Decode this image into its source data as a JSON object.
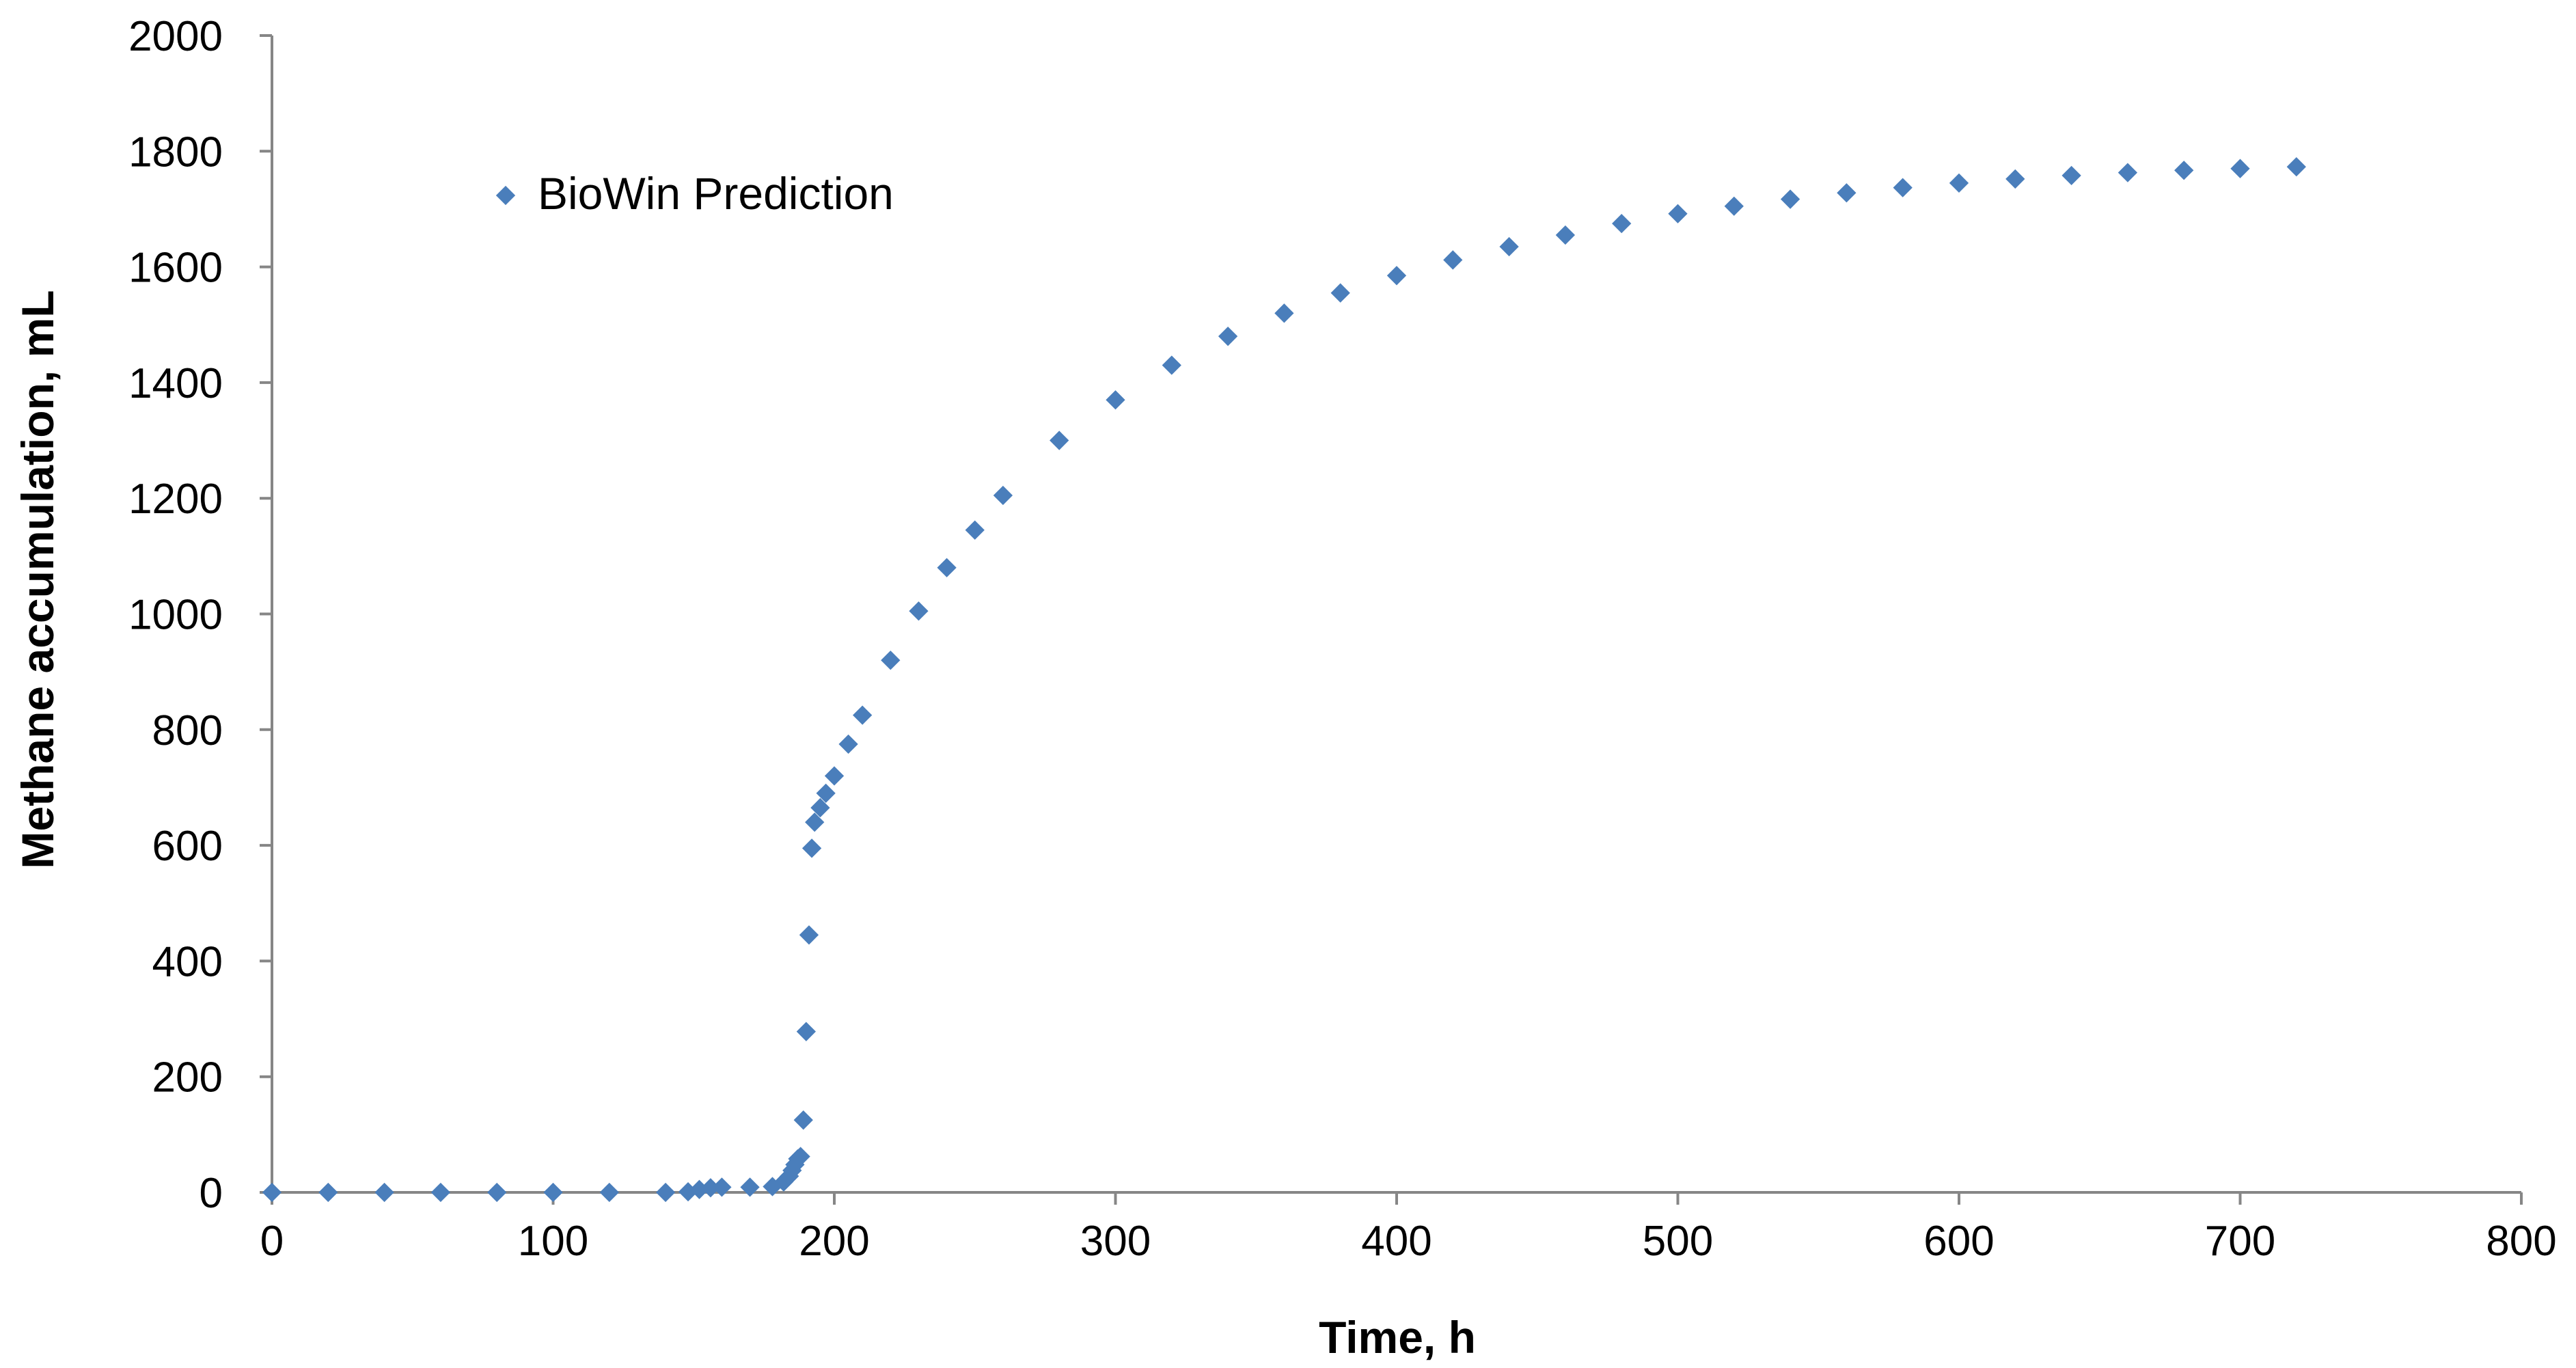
{
  "chart_data": {
    "type": "scatter",
    "title": "",
    "xlabel": "Time, h",
    "ylabel": "Methane accumulation, mL",
    "xlim": [
      0,
      800
    ],
    "ylim": [
      0,
      2000
    ],
    "xticks": [
      "0",
      "100",
      "200",
      "300",
      "400",
      "500",
      "600",
      "700",
      "800"
    ],
    "yticks": [
      "0",
      "200",
      "400",
      "600",
      "800",
      "1000",
      "1200",
      "1400",
      "1600",
      "1800",
      "2000"
    ],
    "grid": false,
    "legend": {
      "position": "top-left",
      "entries": [
        "BioWin Prediction"
      ]
    },
    "series": [
      {
        "name": "BioWin Prediction",
        "color": "#4A7EBB",
        "marker": "diamond",
        "points": [
          [
            0,
            0
          ],
          [
            20,
            0
          ],
          [
            40,
            0
          ],
          [
            60,
            0
          ],
          [
            80,
            0
          ],
          [
            100,
            0
          ],
          [
            120,
            0
          ],
          [
            140,
            0
          ],
          [
            148,
            1
          ],
          [
            152,
            5
          ],
          [
            156,
            8
          ],
          [
            160,
            9
          ],
          [
            170,
            9
          ],
          [
            178,
            10
          ],
          [
            182,
            18
          ],
          [
            184,
            28
          ],
          [
            185,
            38
          ],
          [
            186,
            48
          ],
          [
            187,
            58
          ],
          [
            188,
            62
          ],
          [
            189,
            125
          ],
          [
            190,
            278
          ],
          [
            191,
            445
          ],
          [
            192,
            595
          ],
          [
            193,
            640
          ],
          [
            195,
            665
          ],
          [
            197,
            690
          ],
          [
            200,
            720
          ],
          [
            205,
            775
          ],
          [
            210,
            825
          ],
          [
            220,
            920
          ],
          [
            230,
            1005
          ],
          [
            240,
            1080
          ],
          [
            250,
            1145
          ],
          [
            260,
            1205
          ],
          [
            280,
            1300
          ],
          [
            300,
            1370
          ],
          [
            320,
            1430
          ],
          [
            340,
            1480
          ],
          [
            360,
            1520
          ],
          [
            380,
            1555
          ],
          [
            400,
            1585
          ],
          [
            420,
            1612
          ],
          [
            440,
            1635
          ],
          [
            460,
            1655
          ],
          [
            480,
            1675
          ],
          [
            500,
            1692
          ],
          [
            520,
            1705
          ],
          [
            540,
            1717
          ],
          [
            560,
            1728
          ],
          [
            580,
            1737
          ],
          [
            600,
            1745
          ],
          [
            620,
            1752
          ],
          [
            640,
            1758
          ],
          [
            660,
            1763
          ],
          [
            680,
            1767
          ],
          [
            700,
            1770
          ],
          [
            720,
            1773
          ]
        ]
      }
    ]
  }
}
